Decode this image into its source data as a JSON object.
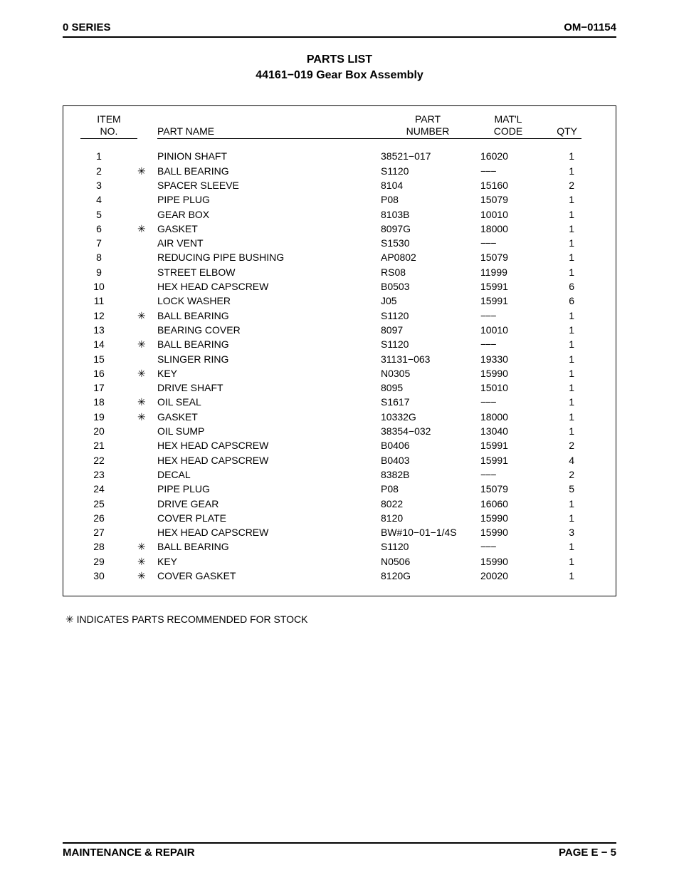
{
  "header": {
    "left": "0 SERIES",
    "right": "OM−01154"
  },
  "title": {
    "line1": "PARTS LIST",
    "line2": "44161−019 Gear Box Assembly"
  },
  "table": {
    "columns": {
      "item_line1": "ITEM",
      "item_line2": "NO.",
      "name": "PART NAME",
      "part_line1": "PART",
      "part_line2": "NUMBER",
      "matl_line1": "MAT'L",
      "matl_line2": "CODE",
      "qty": "QTY"
    },
    "rows": [
      {
        "item": "1",
        "star": "",
        "name": "PINION SHAFT",
        "part": "38521−017",
        "matl": "16020",
        "qty": "1"
      },
      {
        "item": "2",
        "star": "✳",
        "name": "BALL BEARING",
        "part": "S1120",
        "matl": "−−−",
        "qty": "1"
      },
      {
        "item": "3",
        "star": "",
        "name": "SPACER SLEEVE",
        "part": "8104",
        "matl": "15160",
        "qty": "2"
      },
      {
        "item": "4",
        "star": "",
        "name": "PIPE PLUG",
        "part": "P08",
        "matl": "15079",
        "qty": "1"
      },
      {
        "item": "5",
        "star": "",
        "name": "GEAR BOX",
        "part": "8103B",
        "matl": "10010",
        "qty": "1"
      },
      {
        "item": "6",
        "star": "✳",
        "name": "GASKET",
        "part": "8097G",
        "matl": "18000",
        "qty": "1"
      },
      {
        "item": "7",
        "star": "",
        "name": "AIR VENT",
        "part": "S1530",
        "matl": "−−−",
        "qty": "1"
      },
      {
        "item": "8",
        "star": "",
        "name": "REDUCING PIPE BUSHING",
        "part": "AP0802",
        "matl": "15079",
        "qty": "1"
      },
      {
        "item": "9",
        "star": "",
        "name": "STREET ELBOW",
        "part": "RS08",
        "matl": "11999",
        "qty": "1"
      },
      {
        "item": "10",
        "star": "",
        "name": "HEX HEAD CAPSCREW",
        "part": "B0503",
        "matl": "15991",
        "qty": "6"
      },
      {
        "item": "11",
        "star": "",
        "name": "LOCK WASHER",
        "part": "J05",
        "matl": "15991",
        "qty": "6"
      },
      {
        "item": "12",
        "star": "✳",
        "name": "BALL BEARING",
        "part": "S1120",
        "matl": "−−−",
        "qty": "1"
      },
      {
        "item": "13",
        "star": "",
        "name": "BEARING COVER",
        "part": "8097",
        "matl": "10010",
        "qty": "1"
      },
      {
        "item": "14",
        "star": "✳",
        "name": "BALL BEARING",
        "part": "S1120",
        "matl": "−−−",
        "qty": "1"
      },
      {
        "item": "15",
        "star": "",
        "name": "SLINGER RING",
        "part": "31131−063",
        "matl": "19330",
        "qty": "1"
      },
      {
        "item": "16",
        "star": "✳",
        "name": "KEY",
        "part": "N0305",
        "matl": "15990",
        "qty": "1"
      },
      {
        "item": "17",
        "star": "",
        "name": "DRIVE SHAFT",
        "part": "8095",
        "matl": "15010",
        "qty": "1"
      },
      {
        "item": "18",
        "star": "✳",
        "name": "OIL SEAL",
        "part": "S1617",
        "matl": "−−−",
        "qty": "1"
      },
      {
        "item": "19",
        "star": "✳",
        "name": "GASKET",
        "part": "10332G",
        "matl": "18000",
        "qty": "1"
      },
      {
        "item": "20",
        "star": "",
        "name": "OIL SUMP",
        "part": "38354−032",
        "matl": "13040",
        "qty": "1"
      },
      {
        "item": "21",
        "star": "",
        "name": "HEX HEAD CAPSCREW",
        "part": "B0406",
        "matl": "15991",
        "qty": "2"
      },
      {
        "item": "22",
        "star": "",
        "name": "HEX HEAD CAPSCREW",
        "part": "B0403",
        "matl": "15991",
        "qty": "4"
      },
      {
        "item": "23",
        "star": "",
        "name": "DECAL",
        "part": "8382B",
        "matl": "−−−",
        "qty": "2"
      },
      {
        "item": "24",
        "star": "",
        "name": "PIPE PLUG",
        "part": "P08",
        "matl": "15079",
        "qty": "5"
      },
      {
        "item": "25",
        "star": "",
        "name": "DRIVE GEAR",
        "part": "8022",
        "matl": "16060",
        "qty": "1"
      },
      {
        "item": "26",
        "star": "",
        "name": "COVER PLATE",
        "part": "8120",
        "matl": "15990",
        "qty": "1"
      },
      {
        "item": "27",
        "star": "",
        "name": "HEX HEAD CAPSCREW",
        "part": "BW#10−01−1/4S",
        "matl": "15990",
        "qty": "3"
      },
      {
        "item": "28",
        "star": "✳",
        "name": "BALL BEARING",
        "part": "S1120",
        "matl": "−−−",
        "qty": "1"
      },
      {
        "item": "29",
        "star": "✳",
        "name": "KEY",
        "part": "N0506",
        "matl": "15990",
        "qty": "1"
      },
      {
        "item": "30",
        "star": "✳",
        "name": "COVER GASKET",
        "part": "8120G",
        "matl": "20020",
        "qty": "1"
      }
    ]
  },
  "footnote": "✳ INDICATES PARTS RECOMMENDED FOR STOCK",
  "footer": {
    "left": "MAINTENANCE & REPAIR",
    "right": "PAGE E − 5"
  }
}
